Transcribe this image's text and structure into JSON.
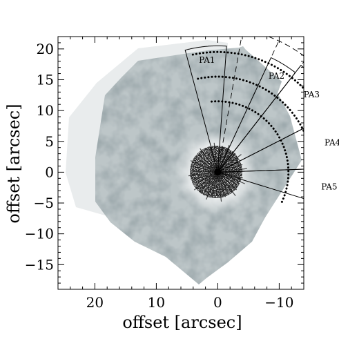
{
  "chart_data": {
    "type": "scatter",
    "image_kind": "grayscale-imaging-map",
    "title": "",
    "xlabel": "offset [arcsec]",
    "ylabel": "offset [arcsec]",
    "xlim": [
      26,
      -14
    ],
    "ylim": [
      -19,
      22
    ],
    "x_inverted": true,
    "x_ticks": [
      20,
      10,
      0,
      -10
    ],
    "y_ticks": [
      20,
      15,
      10,
      5,
      0,
      -5,
      -10,
      -15
    ],
    "x_tick_labels": [
      "20",
      "10",
      "0",
      "−10"
    ],
    "y_tick_labels": [
      "20",
      "15",
      "10",
      "5",
      "0",
      "−5",
      "−10",
      "−15"
    ],
    "center": [
      0,
      0
    ],
    "rings": [
      {
        "style": "dashed",
        "radius": 23.5,
        "theta_start_deg": 75,
        "theta_end_deg": 165
      },
      {
        "style": "dotted",
        "radius": 19.5,
        "theta_start_deg": 78,
        "theta_end_deg": 182
      },
      {
        "style": "dotted",
        "radius": 15.5,
        "theta_start_deg": 78,
        "theta_end_deg": 185
      },
      {
        "style": "dotted",
        "radius": 11.5,
        "theta_start_deg": 85,
        "theta_end_deg": 205
      }
    ],
    "spokes_dashed_deg": [
      100,
      115,
      128
    ],
    "sectors": [
      {
        "label": "PA1",
        "theta_start_deg": 75,
        "theta_end_deg": 94,
        "r_outer": 20.5
      },
      {
        "label": "PA2",
        "theta_start_deg": 115,
        "theta_end_deg": 128,
        "r_outer": 20.5
      },
      {
        "label": "PA3",
        "theta_start_deg": 128,
        "theta_end_deg": 153,
        "r_outer": 22.0
      },
      {
        "label": "PA4",
        "theta_start_deg": 153,
        "theta_end_deg": 178,
        "r_outer": 21.5
      },
      {
        "label": "PA5",
        "theta_start_deg": 178,
        "theta_end_deg": 197,
        "r_outer": 20.5
      }
    ],
    "grid": false,
    "legend": "none"
  }
}
